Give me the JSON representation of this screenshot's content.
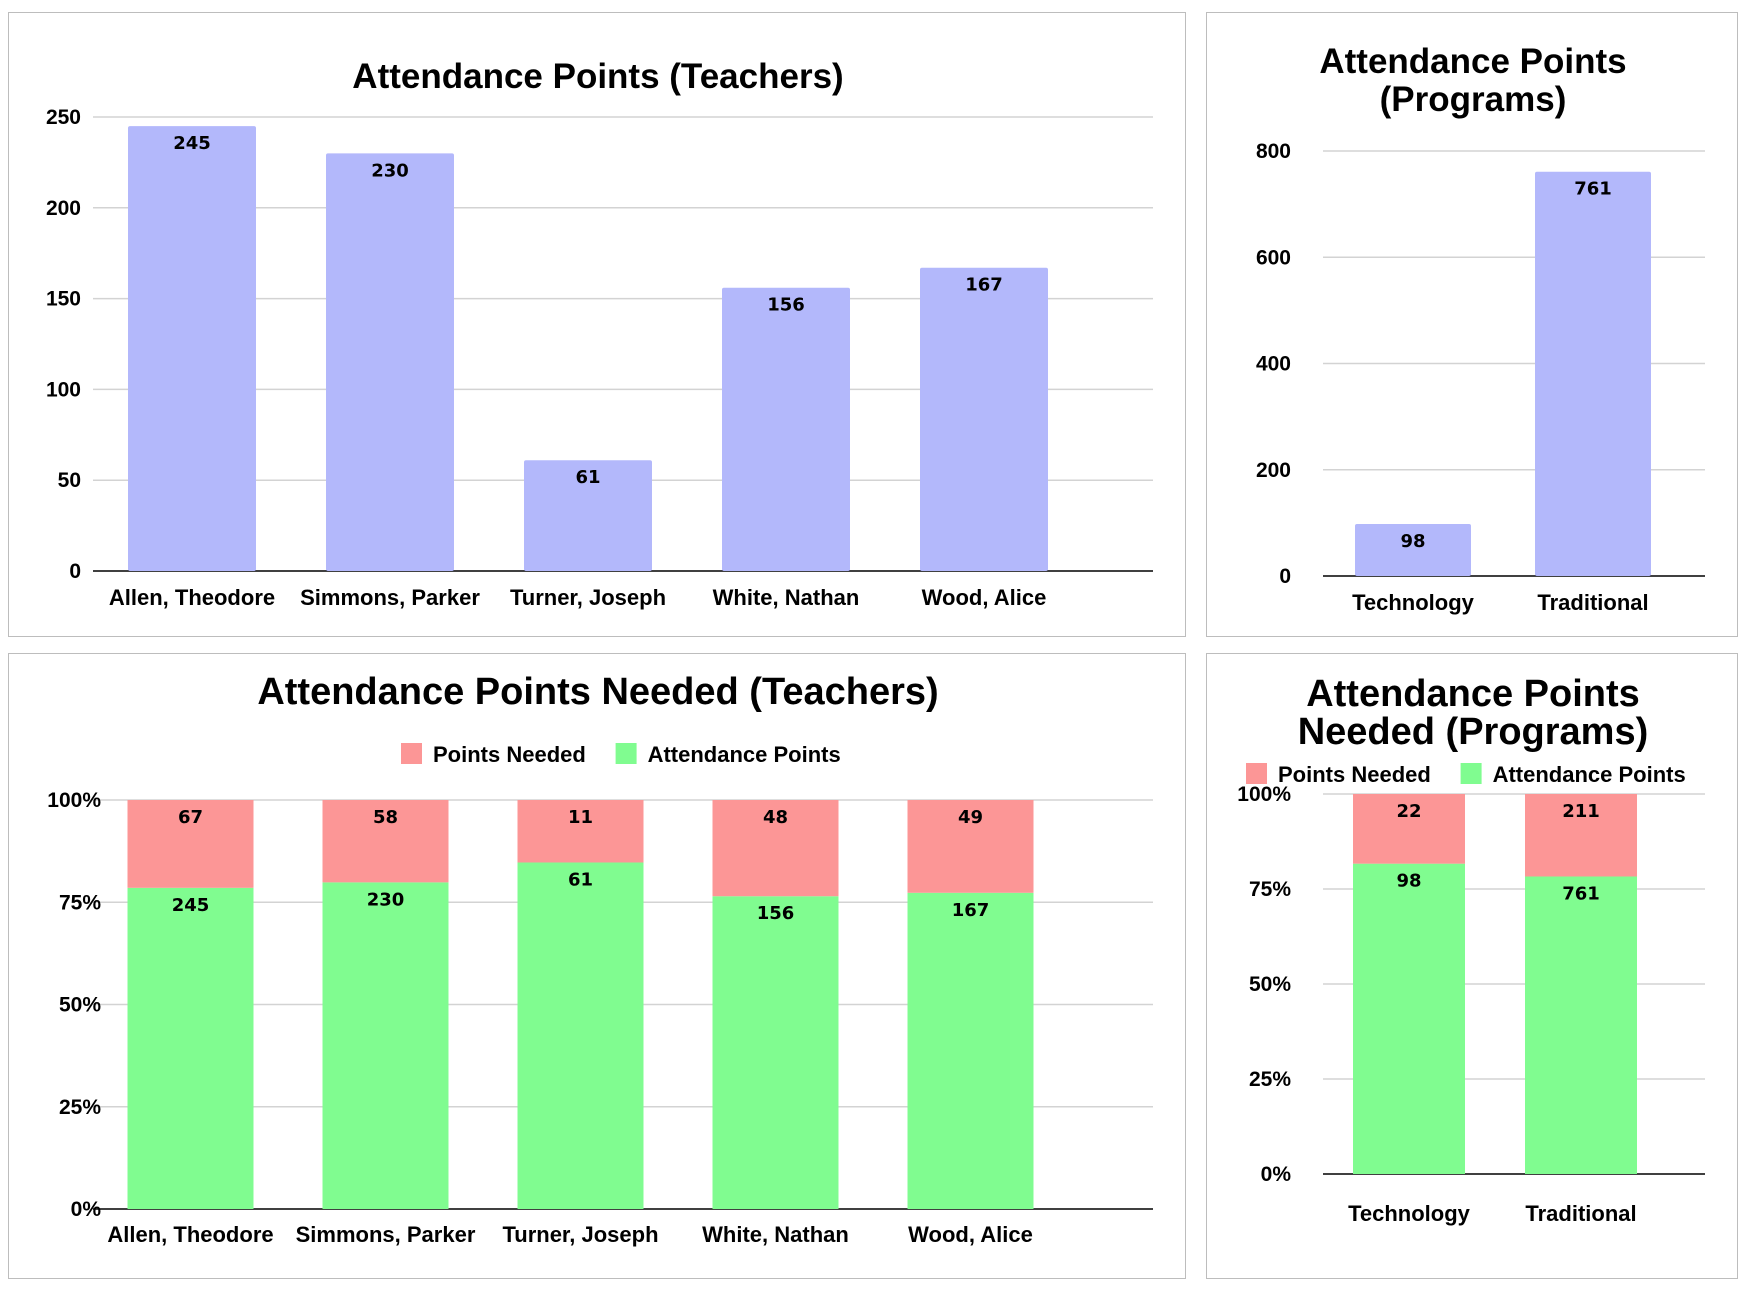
{
  "colors": {
    "bar": "#b3b8fb",
    "needed": "#fc9696",
    "attendance": "#80fc90",
    "grid": "#d3d3d3",
    "axis": "#000000"
  },
  "chart_data": [
    {
      "type": "bar",
      "title": "Attendance Points (Teachers)",
      "categories": [
        "Allen, Theodore",
        "Simmons, Parker",
        "Turner, Joseph",
        "White, Nathan",
        "Wood, Alice"
      ],
      "values": [
        245,
        230,
        61,
        156,
        167
      ],
      "ylim": [
        0,
        250
      ],
      "yticks": [
        "0",
        "50",
        "100",
        "150",
        "200",
        "250"
      ],
      "grid": true
    },
    {
      "type": "bar",
      "title": [
        "Attendance Points",
        "(Programs)"
      ],
      "categories": [
        "Technology",
        "Traditional"
      ],
      "values": [
        98,
        761
      ],
      "ylim": [
        0,
        800
      ],
      "yticks": [
        "0",
        "200",
        "400",
        "600",
        "800"
      ],
      "grid": true
    },
    {
      "type": "bar",
      "stacked": "percent",
      "title": "Attendance Points Needed (Teachers)",
      "categories": [
        "Allen, Theodore",
        "Simmons, Parker",
        "Turner, Joseph",
        "White, Nathan",
        "Wood, Alice"
      ],
      "series": [
        {
          "name": "Attendance Points",
          "values": [
            245,
            230,
            61,
            156,
            167
          ]
        },
        {
          "name": "Points Needed",
          "values": [
            67,
            58,
            11,
            48,
            49
          ]
        }
      ],
      "legend": [
        "Points Needed",
        "Attendance Points"
      ],
      "legend_position": "top",
      "ylim": [
        0,
        1
      ],
      "yticks": [
        "0%",
        "25%",
        "50%",
        "75%",
        "100%"
      ],
      "grid": true
    },
    {
      "type": "bar",
      "stacked": "percent",
      "title": [
        "Attendance Points",
        "Needed (Programs)"
      ],
      "categories": [
        "Technology",
        "Traditional"
      ],
      "series": [
        {
          "name": "Attendance Points",
          "values": [
            98,
            761
          ]
        },
        {
          "name": "Points Needed",
          "values": [
            22,
            211
          ]
        }
      ],
      "legend": [
        "Points Needed",
        "Attendance Points"
      ],
      "legend_position": "top",
      "ylim": [
        0,
        1
      ],
      "yticks": [
        "0%",
        "25%",
        "50%",
        "75%",
        "100%"
      ],
      "grid": true
    }
  ]
}
